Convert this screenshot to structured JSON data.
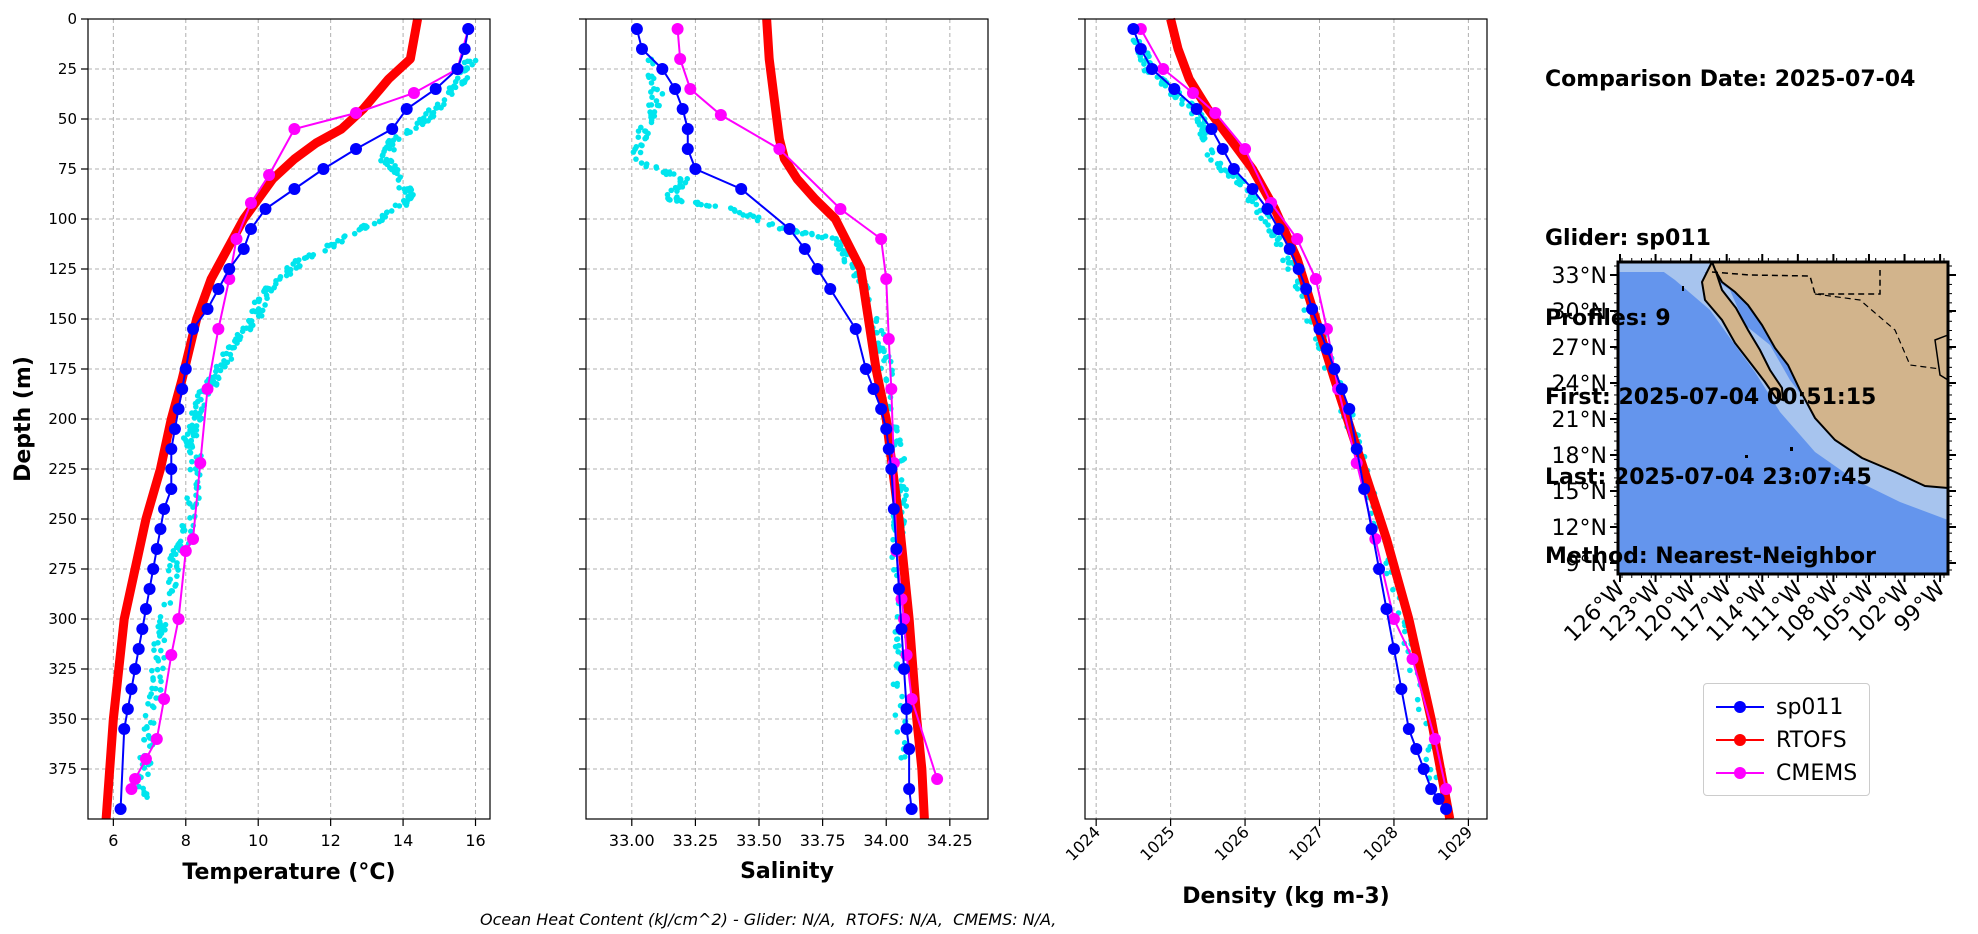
{
  "info": {
    "comparison_date": "Comparison Date: 2025-07-04",
    "glider": "Glider: sp011",
    "profiles": "Profiles: 9",
    "first": "First: 2025-07-04 00:51:15",
    "last": "Last: 2025-07-04 23:07:45",
    "method": "Method: Nearest-Neighbor"
  },
  "footer": "Ocean Heat Content (kJ/cm^2) - Glider: N/A,  RTOFS: N/A,  CMEMS: N/A,",
  "colors": {
    "glider": "#0000ff",
    "glider_raw": "#00e5ee",
    "rtofs": "#ff0000",
    "cmems": "#ff00ff",
    "ocean": "#6495ed",
    "shelf": "#a7c4ee",
    "land": "#d2b48c",
    "grid": "#b0b0b0"
  },
  "legend": [
    {
      "label": "sp011",
      "color": "#0000ff"
    },
    {
      "label": "RTOFS",
      "color": "#ff0000"
    },
    {
      "label": "CMEMS",
      "color": "#ff00ff"
    }
  ],
  "chart_data": [
    {
      "type": "line",
      "xlabel": "Temperature (°C)",
      "ylabel": "Depth (m)",
      "xlim": [
        5.3,
        16.4
      ],
      "ylim": [
        400,
        0
      ],
      "xticks": [
        "6",
        "8",
        "10",
        "12",
        "14",
        "16"
      ],
      "yticks": [
        "0",
        "25",
        "50",
        "75",
        "100",
        "125",
        "150",
        "175",
        "200",
        "225",
        "250",
        "275",
        "300",
        "325",
        "350",
        "375"
      ],
      "grid": true,
      "series": [
        {
          "name": "sp011",
          "x": [
            15.8,
            15.7,
            15.5,
            14.9,
            14.1,
            13.7,
            12.7,
            11.8,
            11.0,
            10.2,
            9.8,
            9.6,
            9.2,
            8.9,
            8.6,
            8.2,
            8.0,
            7.9,
            7.8,
            7.7,
            7.6,
            7.6,
            7.6,
            7.4,
            7.3,
            7.2,
            7.1,
            7.0,
            6.9,
            6.8,
            6.7,
            6.6,
            6.5,
            6.4,
            6.3,
            6.2
          ],
          "y": [
            5,
            15,
            25,
            35,
            45,
            55,
            65,
            75,
            85,
            95,
            105,
            115,
            125,
            135,
            145,
            155,
            175,
            185,
            195,
            205,
            215,
            225,
            235,
            245,
            255,
            265,
            275,
            285,
            295,
            305,
            315,
            325,
            335,
            345,
            355,
            395
          ]
        },
        {
          "name": "RTOFS",
          "x": [
            14.4,
            14.3,
            14.2,
            13.6,
            12.9,
            12.3,
            11.6,
            11.0,
            10.4,
            10.0,
            9.6,
            9.3,
            8.7,
            8.3,
            7.9,
            7.6,
            7.3,
            6.9,
            6.6,
            6.3,
            6.0,
            5.8
          ],
          "y": [
            0,
            10,
            20,
            30,
            45,
            55,
            62,
            70,
            80,
            90,
            100,
            110,
            130,
            150,
            180,
            200,
            225,
            250,
            275,
            300,
            350,
            400
          ]
        },
        {
          "name": "CMEMS",
          "x": [
            15.8,
            15.5,
            14.3,
            12.7,
            11.0,
            10.3,
            9.8,
            9.4,
            9.2,
            8.9,
            8.6,
            8.4,
            8.2,
            8.0,
            7.8,
            7.6,
            7.4,
            7.2,
            6.9,
            6.6,
            6.5
          ],
          "y": [
            5,
            25,
            37,
            47,
            55,
            78,
            92,
            110,
            130,
            155,
            185,
            222,
            260,
            266,
            300,
            318,
            340,
            360,
            370,
            380,
            385
          ]
        },
        {
          "name": "raw",
          "x": [
            15.9,
            15.6,
            15.2,
            14.6,
            13.8,
            13.5,
            13.9,
            14.2,
            13.4,
            12.4,
            11.2,
            10.6,
            10.1,
            9.9,
            9.4,
            9.1,
            8.8,
            8.4,
            8.3,
            8.1,
            8.3,
            8.2,
            8.0,
            7.7,
            7.5,
            7.3,
            7.2,
            7.0,
            6.9,
            6.8
          ],
          "y": [
            20,
            30,
            40,
            50,
            60,
            70,
            80,
            90,
            100,
            110,
            120,
            130,
            140,
            150,
            160,
            170,
            180,
            190,
            200,
            210,
            220,
            240,
            260,
            270,
            290,
            310,
            330,
            350,
            370,
            390
          ]
        }
      ]
    },
    {
      "type": "line",
      "xlabel": "Salinity",
      "xlim": [
        32.82,
        34.4
      ],
      "ylim": [
        400,
        0
      ],
      "xticks": [
        "33.00",
        "33.25",
        "33.50",
        "33.75",
        "34.00",
        "34.25"
      ],
      "grid": true,
      "series": [
        {
          "name": "sp011",
          "x": [
            33.02,
            33.04,
            33.12,
            33.17,
            33.2,
            33.22,
            33.22,
            33.25,
            33.43,
            33.62,
            33.68,
            33.73,
            33.78,
            33.88,
            33.92,
            33.95,
            33.98,
            34.0,
            34.01,
            34.02,
            34.03,
            34.04,
            34.05,
            34.06,
            34.07,
            34.08,
            34.08,
            34.09,
            34.09,
            34.1
          ],
          "y": [
            5,
            15,
            25,
            35,
            45,
            55,
            65,
            75,
            85,
            105,
            115,
            125,
            135,
            155,
            175,
            185,
            195,
            205,
            215,
            225,
            245,
            265,
            285,
            305,
            325,
            345,
            355,
            365,
            385,
            395
          ]
        },
        {
          "name": "RTOFS",
          "x": [
            33.53,
            33.54,
            33.56,
            33.57,
            33.58,
            33.6,
            33.65,
            33.72,
            33.8,
            33.9,
            33.93,
            33.96,
            34.0,
            34.05,
            34.09,
            34.12,
            34.14,
            34.15
          ],
          "y": [
            0,
            20,
            40,
            50,
            60,
            70,
            80,
            90,
            100,
            125,
            150,
            175,
            200,
            250,
            300,
            350,
            375,
            400
          ]
        },
        {
          "name": "CMEMS",
          "x": [
            33.18,
            33.19,
            33.23,
            33.35,
            33.58,
            33.82,
            33.98,
            34.0,
            34.01,
            34.02,
            34.03,
            34.04,
            34.06,
            34.07,
            34.08,
            34.1,
            34.2
          ],
          "y": [
            5,
            20,
            35,
            48,
            65,
            95,
            110,
            130,
            160,
            185,
            222,
            266,
            290,
            300,
            318,
            340,
            380
          ]
        },
        {
          "name": "raw",
          "x": [
            33.08,
            33.1,
            33.05,
            33.0,
            33.2,
            33.15,
            33.4,
            33.6,
            33.8,
            33.85,
            33.9,
            33.95,
            34.0,
            34.02,
            34.05,
            34.06,
            34.05,
            34.04,
            34.06,
            34.05,
            34.07
          ],
          "y": [
            20,
            40,
            55,
            70,
            80,
            90,
            95,
            105,
            110,
            120,
            130,
            150,
            170,
            200,
            220,
            240,
            250,
            260,
            300,
            330,
            370
          ]
        }
      ]
    },
    {
      "type": "line",
      "xlabel": "Density (kg m-3)",
      "xlim": [
        1023.85,
        1029.25
      ],
      "ylim": [
        400,
        0
      ],
      "xticks": [
        "1024",
        "1025",
        "1026",
        "1027",
        "1028",
        "1029"
      ],
      "grid": true,
      "series": [
        {
          "name": "sp011",
          "x": [
            1024.5,
            1024.6,
            1024.75,
            1025.05,
            1025.35,
            1025.55,
            1025.7,
            1025.85,
            1026.1,
            1026.3,
            1026.45,
            1026.6,
            1026.72,
            1026.82,
            1026.9,
            1027.0,
            1027.1,
            1027.2,
            1027.3,
            1027.4,
            1027.5,
            1027.6,
            1027.7,
            1027.8,
            1027.9,
            1028.0,
            1028.1,
            1028.2,
            1028.3,
            1028.4,
            1028.5,
            1028.6,
            1028.7
          ],
          "y": [
            5,
            15,
            25,
            35,
            45,
            55,
            65,
            75,
            85,
            95,
            105,
            115,
            125,
            135,
            145,
            155,
            165,
            175,
            185,
            195,
            215,
            235,
            255,
            275,
            295,
            315,
            335,
            355,
            365,
            375,
            385,
            390,
            395
          ]
        },
        {
          "name": "RTOFS",
          "x": [
            1025.0,
            1025.1,
            1025.25,
            1025.5,
            1025.8,
            1026.1,
            1026.4,
            1026.7,
            1026.95,
            1027.2,
            1027.55,
            1027.9,
            1028.2,
            1028.5,
            1028.75
          ],
          "y": [
            0,
            15,
            30,
            45,
            60,
            75,
            95,
            120,
            150,
            180,
            220,
            260,
            300,
            350,
            400
          ]
        },
        {
          "name": "CMEMS",
          "x": [
            1024.6,
            1024.9,
            1025.3,
            1025.6,
            1026.0,
            1026.35,
            1026.7,
            1026.95,
            1027.1,
            1027.25,
            1027.5,
            1027.75,
            1028.0,
            1028.25,
            1028.55,
            1028.7
          ],
          "y": [
            5,
            25,
            37,
            47,
            65,
            92,
            110,
            130,
            155,
            185,
            222,
            260,
            300,
            320,
            360,
            385
          ]
        },
        {
          "name": "raw",
          "x": [
            1024.55,
            1024.7,
            1025.0,
            1025.3,
            1025.45,
            1025.55,
            1025.9,
            1026.2,
            1026.45,
            1026.7,
            1026.9,
            1027.1,
            1027.4,
            1027.7,
            1028.0,
            1028.3,
            1028.55
          ],
          "y": [
            10,
            25,
            35,
            45,
            55,
            70,
            80,
            95,
            110,
            130,
            150,
            170,
            200,
            240,
            280,
            330,
            380
          ]
        }
      ]
    },
    {
      "type": "map",
      "lat_ticks": [
        "33°N",
        "30°N",
        "27°N",
        "24°N",
        "21°N",
        "18°N",
        "15°N",
        "12°N",
        "9°N"
      ],
      "lon_ticks": [
        "126°W",
        "123°W",
        "120°W",
        "117°W",
        "114°W",
        "111°W",
        "108°W",
        "105°W",
        "102°W",
        "99°W"
      ]
    }
  ]
}
